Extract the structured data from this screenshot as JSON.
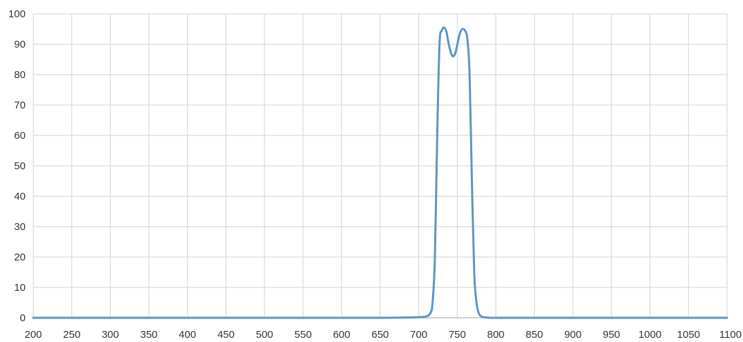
{
  "chart_data": {
    "type": "line",
    "title": "",
    "xlabel": "",
    "ylabel": "",
    "xlim": [
      200,
      1100
    ],
    "ylim": [
      0,
      100
    ],
    "x_ticks": [
      200,
      250,
      300,
      350,
      400,
      450,
      500,
      550,
      600,
      650,
      700,
      750,
      800,
      850,
      900,
      950,
      1000,
      1050,
      1100
    ],
    "y_ticks": [
      0,
      10,
      20,
      30,
      40,
      50,
      60,
      70,
      80,
      90,
      100
    ],
    "x_tick_labels": [
      "200",
      "250",
      "300",
      "350",
      "400",
      "450",
      "500",
      "550",
      "600",
      "650",
      "700",
      "750",
      "800",
      "850",
      "900",
      "950",
      "1000",
      "1050",
      "1100"
    ],
    "y_tick_labels": [
      "0",
      "10",
      "20",
      "30",
      "40",
      "50",
      "60",
      "70",
      "80",
      "90",
      "100"
    ],
    "grid": true,
    "legend": "none",
    "colors": {
      "line": "#5b94c6",
      "grid": "#d9d9d9",
      "axis": "#bfbfbf"
    },
    "series": [
      {
        "x": [
          200,
          300,
          400,
          500,
          600,
          650,
          700,
          710,
          715,
          718,
          721,
          724,
          727,
          730,
          733,
          736,
          739,
          742,
          745,
          748,
          751,
          754,
          757,
          760,
          763,
          766,
          769,
          772,
          775,
          778,
          781,
          785,
          790,
          800,
          900,
          1000,
          1100
        ],
        "y": [
          0,
          0,
          0,
          0,
          0,
          0,
          0.2,
          0.5,
          1.5,
          5,
          20,
          60,
          90,
          94.5,
          95.5,
          94,
          90,
          87,
          86,
          87.5,
          91,
          94,
          95,
          94.5,
          92,
          80,
          45,
          15,
          5,
          1.5,
          0.5,
          0.2,
          0.1,
          0,
          0,
          0,
          0
        ]
      }
    ]
  }
}
